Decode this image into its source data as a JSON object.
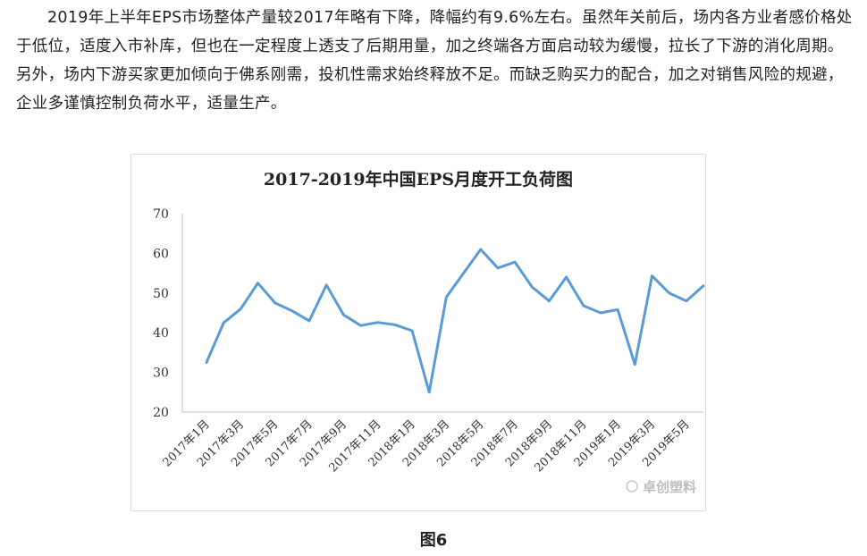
{
  "article": {
    "paragraph": "2019年上半年EPS市场整体产量较2017年略有下降，降幅约有9.6%左右。虽然年关前后，场内各方业者感价格处于低位，适度入市补库，但也在一定程度上透支了后期用量，加之终端各方面启动较为缓慢，拉长了下游的消化周期。另外，场内下游买家更加倾向于佛系刚需，投机性需求始终释放不足。而缺乏购买力的配合，加之对销售风险的规避，企业多谨慎控制负荷水平，适量生产。",
    "figure_caption": "图6"
  },
  "watermark": {
    "text": "卓创塑料"
  },
  "chart_data": {
    "type": "line",
    "title": "2017-2019年中国EPS月度开工负荷图",
    "xlabel": "",
    "ylabel": "",
    "ylim": [
      20,
      70
    ],
    "yticks": [
      20,
      30,
      40,
      50,
      60,
      70
    ],
    "grid": false,
    "legend": "none",
    "line_color": "#5b9bd5",
    "x": [
      "2017年1月",
      "2017年2月",
      "2017年3月",
      "2017年4月",
      "2017年5月",
      "2017年6月",
      "2017年7月",
      "2017年8月",
      "2017年9月",
      "2017年10月",
      "2017年11月",
      "2017年12月",
      "2018年1月",
      "2018年2月",
      "2018年3月",
      "2018年4月",
      "2018年5月",
      "2018年6月",
      "2018年7月",
      "2018年8月",
      "2018年9月",
      "2018年10月",
      "2018年11月",
      "2018年12月",
      "2019年1月",
      "2019年2月",
      "2019年3月",
      "2019年4月",
      "2019年5月",
      "2019年6月"
    ],
    "x_tick_labels": [
      "2017年1月",
      "2017年3月",
      "2017年5月",
      "2017年7月",
      "2017年9月",
      "2017年11月",
      "2018年1月",
      "2018年3月",
      "2018年5月",
      "2018年7月",
      "2018年9月",
      "2018年11月",
      "2019年1月",
      "2019年3月",
      "2019年5月"
    ],
    "series": [
      {
        "values": [
          32.5,
          42.5,
          46,
          52.5,
          47.5,
          45.5,
          43,
          52,
          44.5,
          41.8,
          42.6,
          42,
          40.5,
          25,
          49,
          55,
          61,
          56.3,
          57.8,
          51.5,
          48,
          54,
          46.8,
          45,
          45.8,
          32,
          54.3,
          50,
          48,
          51.8
        ]
      }
    ]
  }
}
